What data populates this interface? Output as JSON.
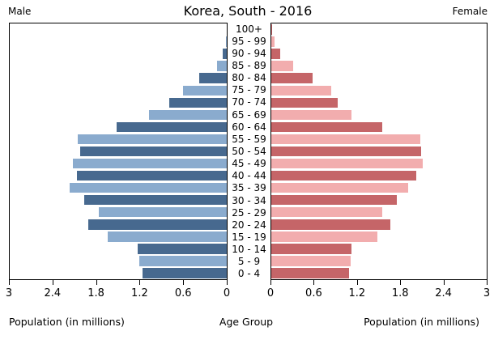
{
  "header": {
    "male_label": "Male",
    "female_label": "Female"
  },
  "footer": {
    "left_axis_label": "Population (in millions)",
    "center_label": "Age Group",
    "right_axis_label": "Population (in millions)"
  },
  "chart_data": {
    "type": "bar",
    "variant": "population_pyramid",
    "title": "Korea, South - 2016",
    "grid": false,
    "legend_position": "none",
    "units": "millions",
    "age_groups": [
      "100+",
      "95 - 99",
      "90 - 94",
      "85 - 89",
      "80 - 84",
      "75 - 79",
      "70 - 74",
      "65 - 69",
      "60 - 64",
      "55 - 59",
      "50 - 54",
      "45 - 49",
      "40 - 44",
      "35 - 39",
      "30 - 34",
      "25 - 29",
      "20 - 24",
      "15 - 19",
      "10 - 14",
      "5 - 9",
      "0 - 4"
    ],
    "series": [
      {
        "name": "Male",
        "side": "left",
        "color_dark": "#47698f",
        "color_light": "#8aabce",
        "values": [
          0.0,
          0.01,
          0.06,
          0.14,
          0.38,
          0.61,
          0.8,
          1.07,
          1.52,
          2.06,
          2.03,
          2.13,
          2.07,
          2.17,
          1.97,
          1.77,
          1.91,
          1.65,
          1.23,
          1.21,
          1.16
        ]
      },
      {
        "name": "Female",
        "side": "right",
        "color_dark": "#c56568",
        "color_light": "#f2adae",
        "values": [
          0.01,
          0.05,
          0.12,
          0.3,
          0.58,
          0.84,
          0.93,
          1.12,
          1.55,
          2.07,
          2.09,
          2.11,
          2.02,
          1.91,
          1.75,
          1.54,
          1.66,
          1.48,
          1.12,
          1.11,
          1.08
        ]
      }
    ],
    "x_axis": {
      "lim": [
        0,
        3
      ],
      "ticks_male": [
        "3",
        "2.4",
        "1.8",
        "1.2",
        "0.6",
        "0"
      ],
      "ticks_female": [
        "0",
        "0.6",
        "1.2",
        "1.8",
        "2.4",
        "3"
      ]
    },
    "alternating_row_colors": true
  }
}
